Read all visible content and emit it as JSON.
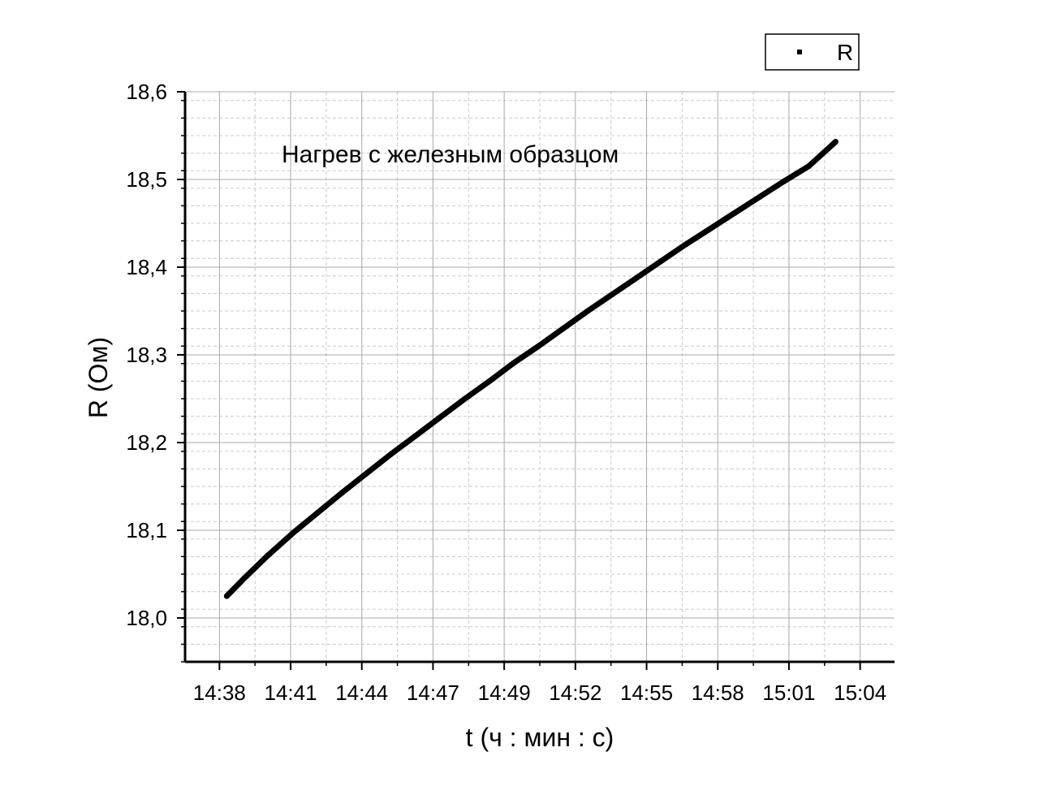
{
  "chart_data": {
    "type": "line",
    "title": "",
    "annotation": "Нагрев с железным образцом",
    "xlabel": "t (ч : мин : с)",
    "ylabel": "R (Ом)",
    "x_tick_labels": [
      "14:38",
      "14:41",
      "14:44",
      "14:47",
      "14:49",
      "14:52",
      "14:55",
      "14:58",
      "15:01",
      "15:04"
    ],
    "x_tick_values_min": [
      0,
      2.9,
      5.8,
      8.7,
      11.6,
      14.5,
      17.4,
      20.3,
      23.2,
      26.1
    ],
    "xlim_min": [
      -1.4,
      27.5
    ],
    "y_tick_labels": [
      "18,0",
      "18,1",
      "18,2",
      "18,3",
      "18,4",
      "18,5",
      "18,6"
    ],
    "y_ticks": [
      18.0,
      18.1,
      18.2,
      18.3,
      18.4,
      18.5,
      18.6
    ],
    "ylim": [
      17.95,
      18.6
    ],
    "grid": true,
    "legend_position": "top-right",
    "series": [
      {
        "name": "R",
        "color": "#000000",
        "x_min": [
          0.3,
          1.0,
          2.0,
          3.0,
          4.0,
          5.0,
          6.0,
          7.0,
          8.0,
          9.0,
          10.0,
          11.0,
          12.0,
          13.0,
          14.0,
          15.0,
          16.0,
          17.0,
          18.0,
          19.0,
          20.0,
          21.0,
          22.0,
          23.0,
          24.0,
          25.1
        ],
        "values": [
          18.025,
          18.045,
          18.072,
          18.097,
          18.12,
          18.143,
          18.165,
          18.187,
          18.208,
          18.229,
          18.25,
          18.27,
          18.291,
          18.31,
          18.33,
          18.35,
          18.369,
          18.388,
          18.407,
          18.426,
          18.444,
          18.462,
          18.48,
          18.498,
          18.515,
          18.543
        ]
      }
    ]
  }
}
